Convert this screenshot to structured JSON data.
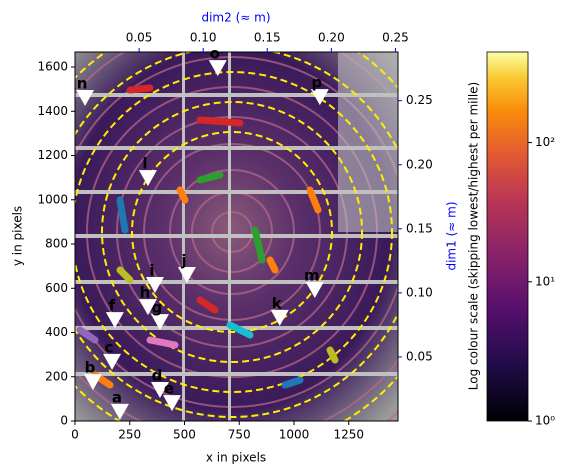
{
  "chart_data": {
    "type": "image",
    "xlabel": "x in pixels",
    "ylabel": "y in pixels",
    "xlim": [
      0,
      1475
    ],
    "ylim": [
      0,
      1668
    ],
    "xticks": [
      0,
      250,
      500,
      750,
      1000,
      1250
    ],
    "yticks": [
      0,
      200,
      400,
      600,
      800,
      1000,
      1200,
      1400,
      1600
    ],
    "x2label": "dim2 (≈ m)",
    "x2lim": [
      0,
      0.252
    ],
    "x2ticks": [
      {
        "value": 0.05,
        "label": "0.05"
      },
      {
        "value": 0.1,
        "label": "0.10"
      },
      {
        "value": 0.15,
        "label": "0.15"
      },
      {
        "value": 0.2,
        "label": "0.20"
      },
      {
        "value": 0.25,
        "label": "0.25"
      }
    ],
    "y2label": "dim1 (≈ m)",
    "y2lim": [
      0,
      0.288
    ],
    "y2ticks": [
      {
        "value": 0.05,
        "label": "0.05"
      },
      {
        "value": 0.1,
        "label": "0.10"
      },
      {
        "value": 0.15,
        "label": "0.15"
      },
      {
        "value": 0.2,
        "label": "0.20"
      },
      {
        "value": 0.25,
        "label": "0.25"
      }
    ],
    "axis_color": "#0000ff",
    "colorbar": {
      "label": "Log colour scale (skipping lowest/highest per mille)",
      "log": true,
      "clim": [
        1,
        447
      ],
      "ticks": [
        {
          "value": 1,
          "label": "10⁰"
        },
        {
          "value": 10,
          "label": "10¹"
        },
        {
          "value": 100,
          "label": "10²"
        }
      ]
    },
    "points": [
      {
        "label": "a",
        "x": 205,
        "y": 41
      },
      {
        "label": "b",
        "x": 82,
        "y": 176
      },
      {
        "label": "c",
        "x": 169,
        "y": 267
      },
      {
        "label": "d",
        "x": 388,
        "y": 140
      },
      {
        "label": "e",
        "x": 443,
        "y": 81
      },
      {
        "label": "f",
        "x": 182,
        "y": 456
      },
      {
        "label": "g",
        "x": 388,
        "y": 447
      },
      {
        "label": "h",
        "x": 333,
        "y": 515
      },
      {
        "label": "i",
        "x": 365,
        "y": 615
      },
      {
        "label": "j",
        "x": 511,
        "y": 660
      },
      {
        "label": "k",
        "x": 935,
        "y": 466
      },
      {
        "label": "l",
        "x": 333,
        "y": 1098
      },
      {
        "label": "m",
        "x": 1095,
        "y": 592
      },
      {
        "label": "n",
        "x": 46,
        "y": 1460
      },
      {
        "label": "o",
        "x": 652,
        "y": 1595
      },
      {
        "label": "p",
        "x": 1118,
        "y": 1464
      }
    ],
    "marker_color": "#ffffff"
  }
}
